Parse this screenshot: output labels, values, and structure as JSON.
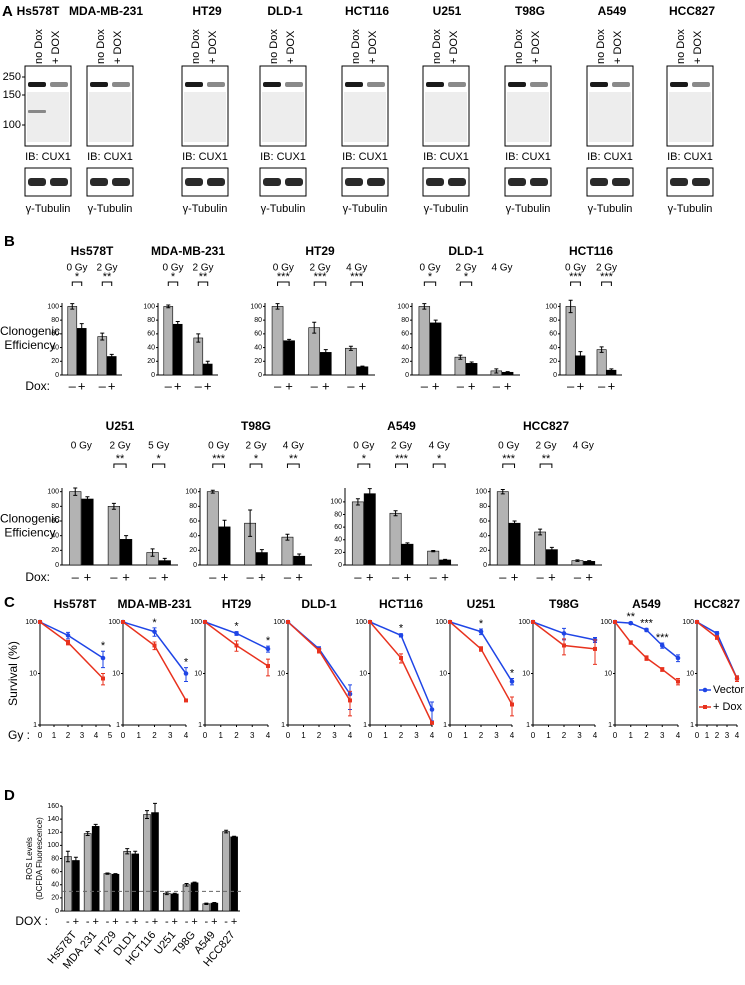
{
  "panel_labels": [
    "A",
    "B",
    "C",
    "D"
  ],
  "panel_a": {
    "cell_lines": [
      "Hs578T",
      "MDA-MB-231",
      "HT29",
      "DLD-1",
      "HCT116",
      "U251",
      "T98G",
      "A549",
      "HCC827"
    ],
    "lanes": [
      "no Dox",
      "+ DOX"
    ],
    "markers": [
      250,
      150,
      100
    ],
    "ib_label": "IB: CUX1",
    "loading_label": "γ-Tubulin"
  },
  "chart_data": [
    {
      "type": "bar",
      "title": "Hs578T",
      "categories": [
        "0 Gy",
        "2 Gy"
      ],
      "series": [
        {
          "name": "–",
          "color": "#b3b3b3",
          "values": [
            100,
            56
          ],
          "errors": [
            4,
            5
          ]
        },
        {
          "name": "+",
          "color": "#000000",
          "values": [
            68,
            27
          ],
          "errors": [
            7,
            3
          ]
        }
      ],
      "significance": [
        "*",
        "**"
      ],
      "ylim": [
        0,
        105
      ],
      "yticks": [
        0,
        20,
        40,
        60,
        80,
        100
      ],
      "y_label": [
        "Clonogenic",
        "Efficiency"
      ],
      "x_label": "Dox:"
    },
    {
      "type": "bar",
      "title": "MDA-MB-231",
      "categories": [
        "0 Gy",
        "2 Gy"
      ],
      "series": [
        {
          "name": "–",
          "color": "#b3b3b3",
          "values": [
            100,
            54
          ],
          "errors": [
            2,
            6
          ]
        },
        {
          "name": "+",
          "color": "#000000",
          "values": [
            74,
            16
          ],
          "errors": [
            4,
            4
          ]
        }
      ],
      "significance": [
        "*",
        "**"
      ],
      "ylim": [
        0,
        105
      ],
      "yticks": [
        0,
        20,
        40,
        60,
        80,
        100
      ]
    },
    {
      "type": "bar",
      "title": "HT29",
      "categories": [
        "0 Gy",
        "2 Gy",
        "4 Gy"
      ],
      "series": [
        {
          "name": "–",
          "color": "#b3b3b3",
          "values": [
            100,
            69,
            39
          ],
          "errors": [
            4,
            8,
            3
          ]
        },
        {
          "name": "+",
          "color": "#000000",
          "values": [
            50,
            33,
            12
          ],
          "errors": [
            2,
            4,
            1
          ]
        }
      ],
      "significance": [
        "***",
        "***",
        "***"
      ],
      "ylim": [
        0,
        105
      ],
      "yticks": [
        0,
        20,
        40,
        60,
        80,
        100
      ]
    },
    {
      "type": "bar",
      "title": "DLD-1",
      "categories": [
        "0 Gy",
        "2 Gy",
        "4 Gy"
      ],
      "series": [
        {
          "name": "–",
          "color": "#b3b3b3",
          "values": [
            100,
            26,
            6
          ],
          "errors": [
            4,
            3,
            3
          ]
        },
        {
          "name": "+",
          "color": "#000000",
          "values": [
            76,
            17,
            4
          ],
          "errors": [
            4,
            2,
            1
          ]
        }
      ],
      "significance": [
        "*",
        "*",
        null
      ],
      "ylim": [
        0,
        105
      ],
      "yticks": [
        0,
        20,
        40,
        60,
        80,
        100
      ]
    },
    {
      "type": "bar",
      "title": "HCT116",
      "categories": [
        "0 Gy",
        "2 Gy"
      ],
      "series": [
        {
          "name": "–",
          "color": "#b3b3b3",
          "values": [
            100,
            37
          ],
          "errors": [
            9,
            4
          ]
        },
        {
          "name": "+",
          "color": "#000000",
          "values": [
            28,
            7
          ],
          "errors": [
            6,
            2
          ]
        }
      ],
      "significance": [
        "***",
        "***"
      ],
      "ylim": [
        0,
        105
      ],
      "yticks": [
        0,
        20,
        40,
        60,
        80,
        100
      ]
    },
    {
      "type": "bar",
      "title": "U251",
      "categories": [
        "0 Gy",
        "2 Gy",
        "5 Gy"
      ],
      "series": [
        {
          "name": "–",
          "color": "#b3b3b3",
          "values": [
            100,
            80,
            17
          ],
          "errors": [
            5,
            4,
            5
          ]
        },
        {
          "name": "+",
          "color": "#000000",
          "values": [
            90,
            35,
            6
          ],
          "errors": [
            3,
            5,
            3
          ]
        }
      ],
      "significance": [
        null,
        "**",
        "*"
      ],
      "ylim": [
        0,
        105
      ],
      "yticks": [
        0,
        20,
        40,
        60,
        80,
        100
      ],
      "y_label": [
        "Clonogenic",
        "Efficiency"
      ],
      "x_label": "Dox:"
    },
    {
      "type": "bar",
      "title": "T98G",
      "categories": [
        "0 Gy",
        "2 Gy",
        "4 Gy"
      ],
      "series": [
        {
          "name": "–",
          "color": "#b3b3b3",
          "values": [
            100,
            57,
            38
          ],
          "errors": [
            2,
            18,
            4
          ]
        },
        {
          "name": "+",
          "color": "#000000",
          "values": [
            52,
            17,
            12
          ],
          "errors": [
            9,
            4,
            3
          ]
        }
      ],
      "significance": [
        "***",
        "*",
        "**"
      ],
      "ylim": [
        0,
        105
      ],
      "yticks": [
        0,
        20,
        40,
        60,
        80,
        100
      ]
    },
    {
      "type": "bar",
      "title": "A549",
      "categories": [
        "0 Gy",
        "2 Gy",
        "4 Gy"
      ],
      "series": [
        {
          "name": "–",
          "color": "#b3b3b3",
          "values": [
            100,
            82,
            22
          ],
          "errors": [
            5,
            4,
            1
          ]
        },
        {
          "name": "+",
          "color": "#000000",
          "values": [
            113,
            33,
            8
          ],
          "errors": [
            8,
            2,
            1
          ]
        }
      ],
      "significance": [
        "*",
        "***",
        "*"
      ],
      "ylim": [
        0,
        122
      ],
      "yticks": [
        0,
        20,
        40,
        60,
        80,
        100
      ]
    },
    {
      "type": "bar",
      "title": "HCC827",
      "categories": [
        "0 Gy",
        "2 Gy",
        "4 Gy"
      ],
      "series": [
        {
          "name": "–",
          "color": "#b3b3b3",
          "values": [
            100,
            45,
            6
          ],
          "errors": [
            3,
            4,
            1
          ]
        },
        {
          "name": "+",
          "color": "#000000",
          "values": [
            57,
            21,
            5
          ],
          "errors": [
            3,
            3,
            1
          ]
        }
      ],
      "significance": [
        "***",
        "**",
        null
      ],
      "ylim": [
        0,
        105
      ],
      "yticks": [
        0,
        20,
        40,
        60,
        80,
        100
      ]
    },
    {
      "type": "line",
      "title": "Hs578T",
      "x": [
        0,
        2,
        4.5
      ],
      "series": [
        {
          "name": "Vector",
          "color": "#1f45e6",
          "marker": "circle",
          "values": [
            100,
            55,
            20
          ],
          "errors": [
            0,
            8,
            7
          ]
        },
        {
          "name": "+ Dox",
          "color": "#e8321e",
          "marker": "square",
          "values": [
            100,
            40,
            8
          ],
          "errors": [
            0,
            4,
            2
          ]
        }
      ],
      "significance": [
        null,
        null,
        "*"
      ],
      "xlim": [
        0,
        5
      ],
      "xticks": [
        0,
        1,
        2,
        3,
        4,
        5
      ],
      "ylim": [
        1,
        100
      ],
      "yticks": [
        1,
        10,
        100
      ],
      "log_y": true,
      "y_label": "Survival (%)",
      "x_label": "Gy :"
    },
    {
      "type": "line",
      "title": "MDA-MB-231",
      "x": [
        0,
        2,
        4
      ],
      "series": [
        {
          "name": "Vector",
          "color": "#1f45e6",
          "marker": "circle",
          "values": [
            100,
            65,
            10
          ],
          "errors": [
            0,
            12,
            3
          ]
        },
        {
          "name": "+ Dox",
          "color": "#e8321e",
          "marker": "square",
          "values": [
            100,
            35,
            3
          ],
          "errors": [
            0,
            6,
            0
          ]
        }
      ],
      "significance": [
        null,
        "*",
        "*"
      ],
      "xlim": [
        0,
        4
      ],
      "xticks": [
        0,
        1,
        2,
        3,
        4
      ],
      "ylim": [
        1,
        100
      ],
      "yticks": [
        1,
        10,
        100
      ],
      "log_y": true
    },
    {
      "type": "line",
      "title": "HT29",
      "x": [
        0,
        2,
        4
      ],
      "series": [
        {
          "name": "Vector",
          "color": "#1f45e6",
          "marker": "circle",
          "values": [
            100,
            60,
            30
          ],
          "errors": [
            0,
            5,
            4
          ]
        },
        {
          "name": "+ Dox",
          "color": "#e8321e",
          "marker": "square",
          "values": [
            100,
            35,
            14
          ],
          "errors": [
            0,
            8,
            5
          ]
        }
      ],
      "significance": [
        null,
        "*",
        "*"
      ],
      "xlim": [
        0,
        4
      ],
      "xticks": [
        0,
        1,
        2,
        3,
        4
      ],
      "ylim": [
        1,
        100
      ],
      "yticks": [
        1,
        10,
        100
      ],
      "log_y": true
    },
    {
      "type": "line",
      "title": "DLD-1",
      "x": [
        0,
        2,
        4
      ],
      "series": [
        {
          "name": "Vector",
          "color": "#1f45e6",
          "marker": "circle",
          "values": [
            100,
            30,
            4
          ],
          "errors": [
            0,
            3,
            2
          ]
        },
        {
          "name": "+ Dox",
          "color": "#e8321e",
          "marker": "square",
          "values": [
            100,
            28,
            3
          ],
          "errors": [
            0,
            3,
            1.5
          ]
        }
      ],
      "xlim": [
        0,
        4
      ],
      "xticks": [
        0,
        1,
        2,
        3,
        4
      ],
      "ylim": [
        1,
        100
      ],
      "yticks": [
        1,
        10,
        100
      ],
      "log_y": true
    },
    {
      "type": "line",
      "title": "HCT116",
      "x": [
        0,
        2,
        4
      ],
      "series": [
        {
          "name": "Vector",
          "color": "#1f45e6",
          "marker": "circle",
          "values": [
            100,
            55,
            2
          ],
          "errors": [
            0,
            4,
            0.8
          ]
        },
        {
          "name": "+ Dox",
          "color": "#e8321e",
          "marker": "square",
          "values": [
            100,
            20,
            1.1
          ],
          "errors": [
            0,
            4,
            0
          ]
        }
      ],
      "significance": [
        null,
        "*",
        null
      ],
      "xlim": [
        0,
        4
      ],
      "xticks": [
        0,
        1,
        2,
        3,
        4
      ],
      "ylim": [
        1,
        100
      ],
      "yticks": [
        1,
        10,
        100
      ],
      "log_y": true
    },
    {
      "type": "line",
      "title": "U251",
      "x": [
        0,
        2,
        4
      ],
      "series": [
        {
          "name": "Vector",
          "color": "#1f45e6",
          "marker": "circle",
          "values": [
            100,
            65,
            7
          ],
          "errors": [
            0,
            8,
            1
          ]
        },
        {
          "name": "+ Dox",
          "color": "#e8321e",
          "marker": "square",
          "values": [
            100,
            30,
            2.5
          ],
          "errors": [
            0,
            3,
            1
          ]
        }
      ],
      "significance": [
        null,
        "*",
        "*"
      ],
      "xlim": [
        0,
        4
      ],
      "xticks": [
        0,
        1,
        2,
        3,
        4
      ],
      "ylim": [
        1,
        100
      ],
      "yticks": [
        1,
        10,
        100
      ],
      "log_y": true
    },
    {
      "type": "line",
      "title": "T98G",
      "x": [
        0,
        2,
        4
      ],
      "series": [
        {
          "name": "Vector",
          "color": "#1f45e6",
          "marker": "circle",
          "values": [
            100,
            60,
            45
          ],
          "errors": [
            0,
            15,
            5
          ]
        },
        {
          "name": "+ Dox",
          "color": "#e8321e",
          "marker": "square",
          "values": [
            100,
            35,
            30
          ],
          "errors": [
            0,
            12,
            15
          ]
        }
      ],
      "xlim": [
        0,
        4
      ],
      "xticks": [
        0,
        1,
        2,
        3,
        4
      ],
      "ylim": [
        1,
        100
      ],
      "yticks": [
        1,
        10,
        100
      ],
      "log_y": true
    },
    {
      "type": "line",
      "title": "A549",
      "x": [
        0,
        1,
        2,
        3,
        4
      ],
      "series": [
        {
          "name": "Vector",
          "color": "#1f45e6",
          "marker": "circle",
          "values": [
            100,
            95,
            70,
            35,
            20
          ],
          "errors": [
            0,
            5,
            5,
            4,
            3
          ]
        },
        {
          "name": "+ Dox",
          "color": "#e8321e",
          "marker": "square",
          "values": [
            100,
            40,
            20,
            12,
            7
          ],
          "errors": [
            0,
            3,
            2,
            1,
            1
          ]
        }
      ],
      "significance": [
        null,
        "**",
        "***",
        "***",
        null
      ],
      "xlim": [
        0,
        4
      ],
      "xticks": [
        0,
        1,
        2,
        3,
        4
      ],
      "ylim": [
        1,
        100
      ],
      "yticks": [
        1,
        10,
        100
      ],
      "log_y": true
    },
    {
      "type": "line",
      "title": "HCC827",
      "x": [
        0,
        2,
        4
      ],
      "series": [
        {
          "name": "Vector",
          "color": "#1f45e6",
          "marker": "circle",
          "values": [
            100,
            60,
            8
          ],
          "errors": [
            0,
            5,
            1
          ]
        },
        {
          "name": "+ Dox",
          "color": "#e8321e",
          "marker": "square",
          "values": [
            100,
            50,
            8
          ],
          "errors": [
            0,
            4,
            1
          ]
        }
      ],
      "xlim": [
        0,
        4
      ],
      "xticks": [
        0,
        1,
        2,
        3,
        4
      ],
      "ylim": [
        1,
        100
      ],
      "yticks": [
        1,
        10,
        100
      ],
      "log_y": true,
      "legend": "right"
    },
    {
      "type": "bar",
      "categories": [
        "Hs578T",
        "MDA 231",
        "HT29",
        "DLD1",
        "HCT116",
        "U251",
        "T98G",
        "A549",
        "HCC827"
      ],
      "series": [
        {
          "name": "-",
          "color": "#b3b3b3",
          "values": [
            83,
            118,
            57,
            91,
            147,
            27,
            40,
            11,
            121
          ],
          "errors": [
            8,
            3,
            1,
            4,
            6,
            2,
            2,
            1,
            2
          ]
        },
        {
          "name": "+",
          "color": "#000000",
          "values": [
            77,
            129,
            56,
            87,
            150,
            26,
            43,
            12,
            113
          ],
          "errors": [
            5,
            3,
            1,
            4,
            14,
            1,
            1,
            1,
            1
          ]
        }
      ],
      "ylim": [
        0,
        160
      ],
      "yticks": [
        0,
        20,
        40,
        60,
        80,
        100,
        120,
        140,
        160
      ],
      "reference_line": 30,
      "y_label": [
        "ROS Levels",
        "(DCFDA Fluorescence)"
      ],
      "x_label": "DOX :"
    }
  ]
}
